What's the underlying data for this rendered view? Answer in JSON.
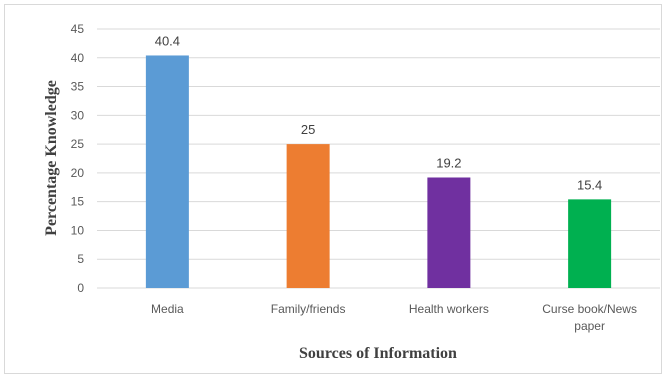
{
  "chart_data": {
    "type": "bar",
    "categories": [
      "Media",
      "Family/friends",
      "Health workers",
      "Curse book/News paper"
    ],
    "category_lines": [
      [
        "Media"
      ],
      [
        "Family/friends"
      ],
      [
        "Health workers"
      ],
      [
        "Curse book/News",
        "paper"
      ]
    ],
    "values": [
      40.4,
      25,
      19.2,
      15.4
    ],
    "data_labels": [
      "40.4",
      "25",
      "19.2",
      "15.4"
    ],
    "colors": [
      "#5b9bd5",
      "#ed7d31",
      "#7030a0",
      "#00b050"
    ],
    "xlabel": "Sources of Information",
    "ylabel": "Percentage  Knowledge",
    "ylim": [
      0,
      45
    ],
    "yticks": [
      0,
      5,
      10,
      15,
      20,
      25,
      30,
      35,
      40,
      45
    ],
    "grid": true,
    "legend": "none"
  }
}
